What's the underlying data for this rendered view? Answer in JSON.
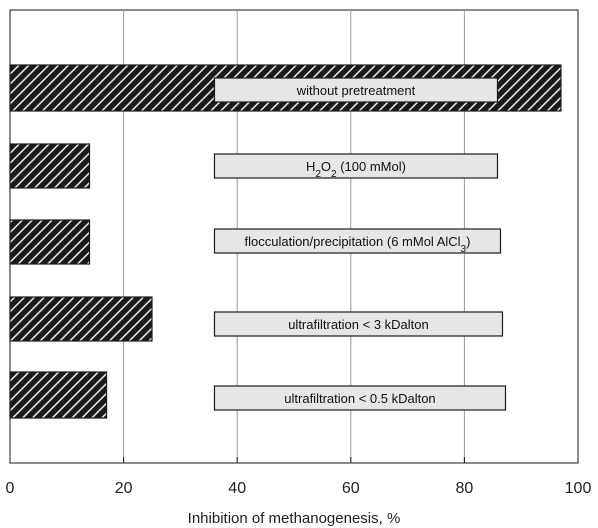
{
  "chart_data": {
    "type": "bar",
    "orientation": "horizontal",
    "xlabel": "Inhibition of methanogenesis, %",
    "xlim": [
      0,
      100
    ],
    "xticks": [
      0,
      20,
      40,
      60,
      80,
      100
    ],
    "grid": true,
    "bar_fill": "hatched",
    "colors": {
      "bar_stroke": "#1a1a1a",
      "label_box_fill": "#e6e6e6",
      "label_box_stroke": "#1a1a1a",
      "grid": "#999999"
    },
    "categories": [
      {
        "name": "without pretreatment",
        "label_parts": [
          {
            "text": "without pretreatment"
          }
        ],
        "value": 97
      },
      {
        "name": "H2O2 (100 mMol)",
        "label_parts": [
          {
            "text": "H"
          },
          {
            "text": "2",
            "sub": true
          },
          {
            "text": "O"
          },
          {
            "text": "2",
            "sub": true
          },
          {
            "text": " (100 mMol)"
          }
        ],
        "value": 14
      },
      {
        "name": "flocculation/precipitation (6 mMol AlCl3)",
        "label_parts": [
          {
            "text": "flocculation/precipitation (6 mMol AlCl"
          },
          {
            "text": "3",
            "sub": true
          },
          {
            "text": ")"
          }
        ],
        "value": 14
      },
      {
        "name": "ultrafiltration < 3 kDalton",
        "label_parts": [
          {
            "text": "ultrafiltration < 3 kDalton"
          }
        ],
        "value": 25
      },
      {
        "name": "ultrafiltration < 0.5 kDalton",
        "label_parts": [
          {
            "text": "ultrafiltration < 0.5 kDalton"
          }
        ],
        "value": 17
      }
    ]
  }
}
